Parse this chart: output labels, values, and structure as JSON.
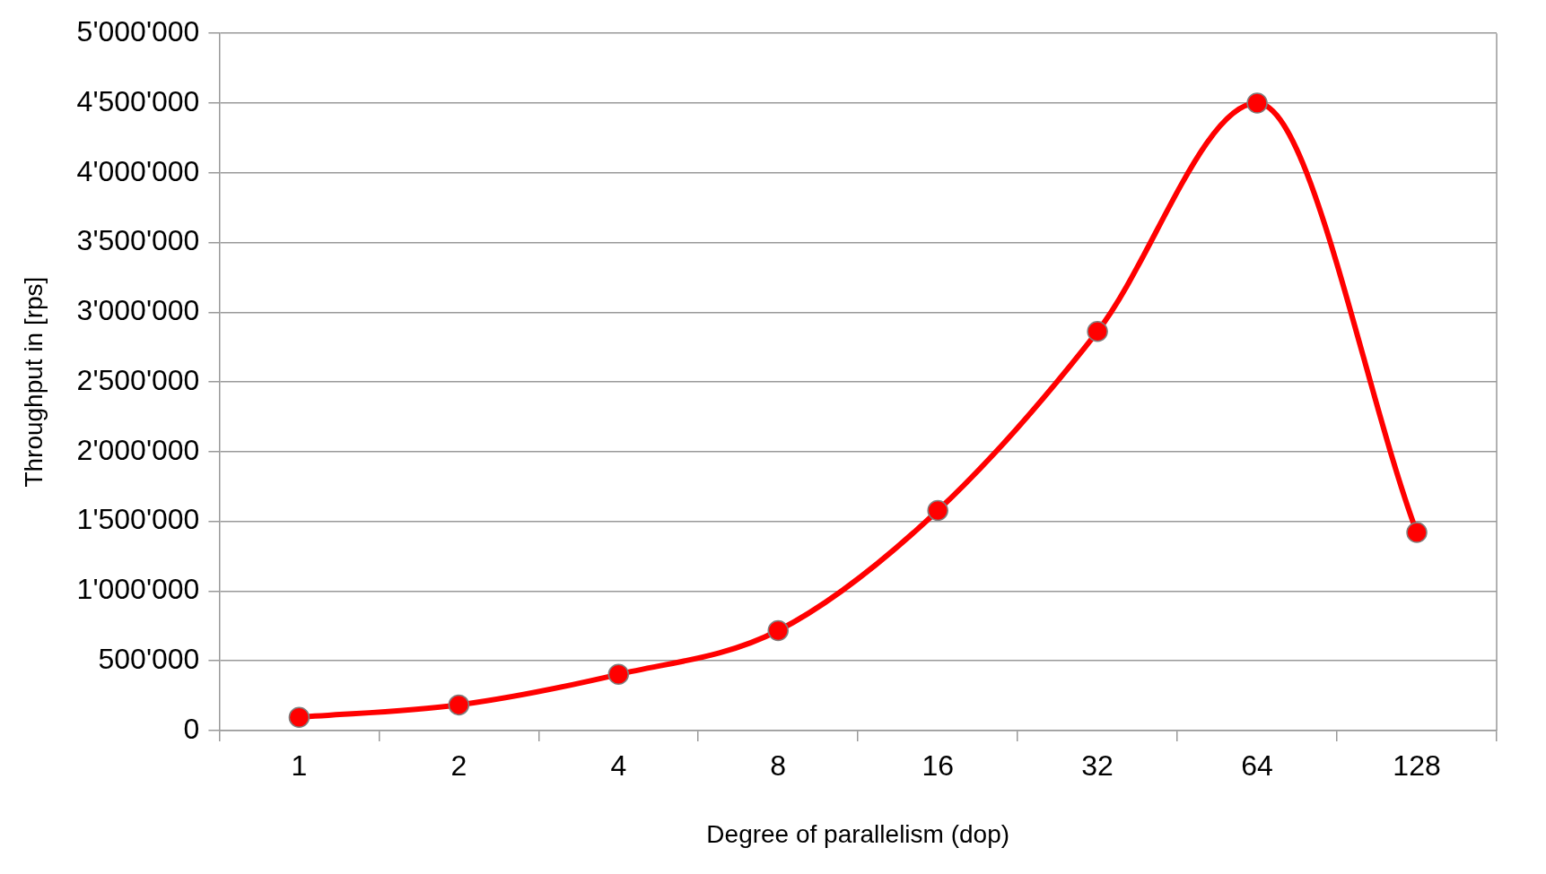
{
  "chart_data": {
    "type": "line",
    "xlabel": "Degree of parallelism (dop)",
    "ylabel": "Throughput in [rps]",
    "categories": [
      "1",
      "2",
      "4",
      "8",
      "16",
      "32",
      "64",
      "128"
    ],
    "series": [
      {
        "color": "#ff0000",
        "values": [
          95000,
          184000,
          403000,
          717000,
          1578000,
          2862000,
          4500000,
          1421000
        ]
      }
    ],
    "ylim": [
      0,
      5000000
    ],
    "yticks": [
      {
        "value": 0,
        "label": "0"
      },
      {
        "value": 500000,
        "label": "500'000"
      },
      {
        "value": 1000000,
        "label": "1'000'000"
      },
      {
        "value": 1500000,
        "label": "1'500'000"
      },
      {
        "value": 2000000,
        "label": "2'000'000"
      },
      {
        "value": 2500000,
        "label": "2'500'000"
      },
      {
        "value": 3000000,
        "label": "3'000'000"
      },
      {
        "value": 3500000,
        "label": "3'500'000"
      },
      {
        "value": 4000000,
        "label": "4'000'000"
      },
      {
        "value": 4500000,
        "label": "4'500'000"
      },
      {
        "value": 5000000,
        "label": "5'000'000"
      }
    ],
    "grid": "y",
    "legend": false,
    "marker": "circle",
    "line_style": "solid"
  }
}
